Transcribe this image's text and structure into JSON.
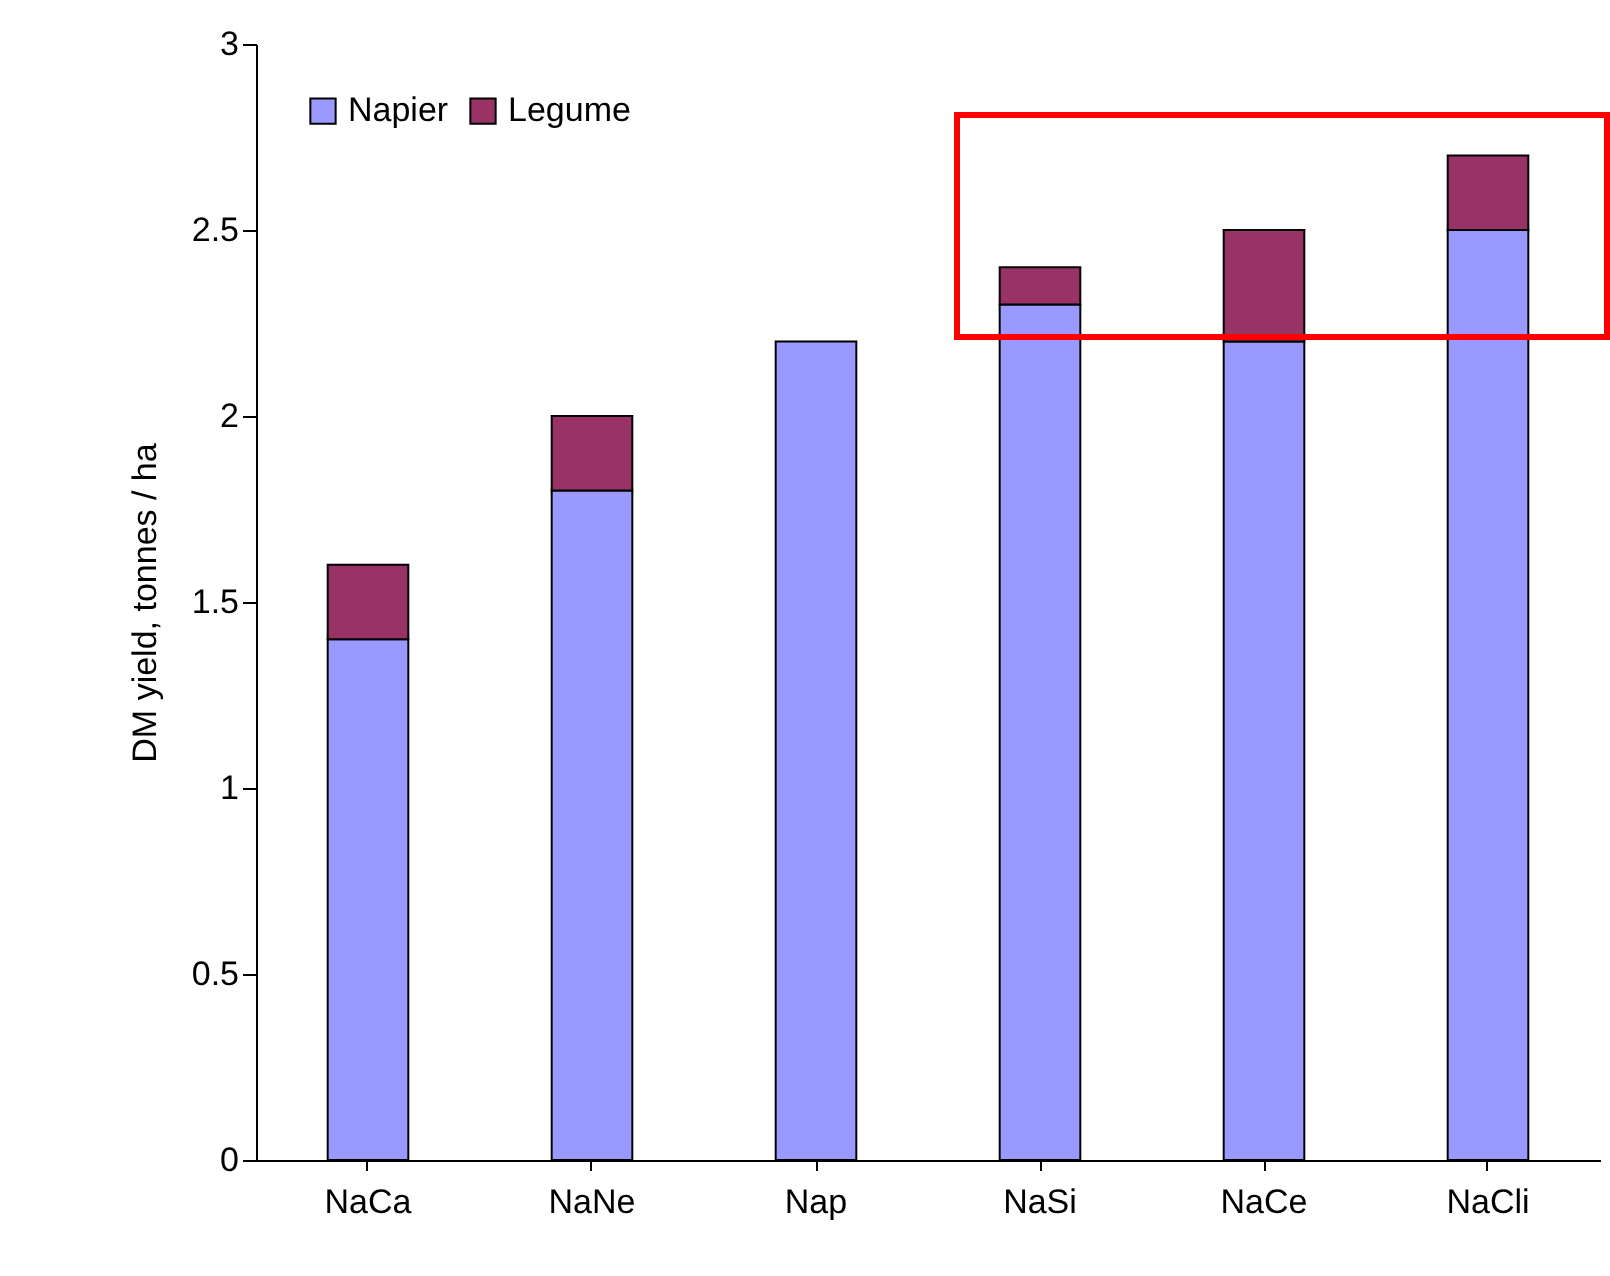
{
  "chart_data": {
    "type": "bar",
    "stacked": true,
    "ylabel": "DM yield, tonnes / ha",
    "categories": [
      "NaCa",
      "NaNe",
      "Nap",
      "NaSi",
      "NaCe",
      "NaCli"
    ],
    "series": [
      {
        "name": "Napier",
        "color": "#9999ff",
        "values": [
          1.4,
          1.8,
          2.2,
          2.3,
          2.2,
          2.5
        ]
      },
      {
        "name": "Legume",
        "color": "#993366",
        "values": [
          0.2,
          0.2,
          0,
          0.1,
          0.3,
          0.2
        ]
      }
    ],
    "ylim": [
      0,
      3
    ],
    "yticks": [
      0,
      0.5,
      1,
      1.5,
      2,
      2.5,
      3
    ],
    "grid": false,
    "legend": "top left"
  }
}
